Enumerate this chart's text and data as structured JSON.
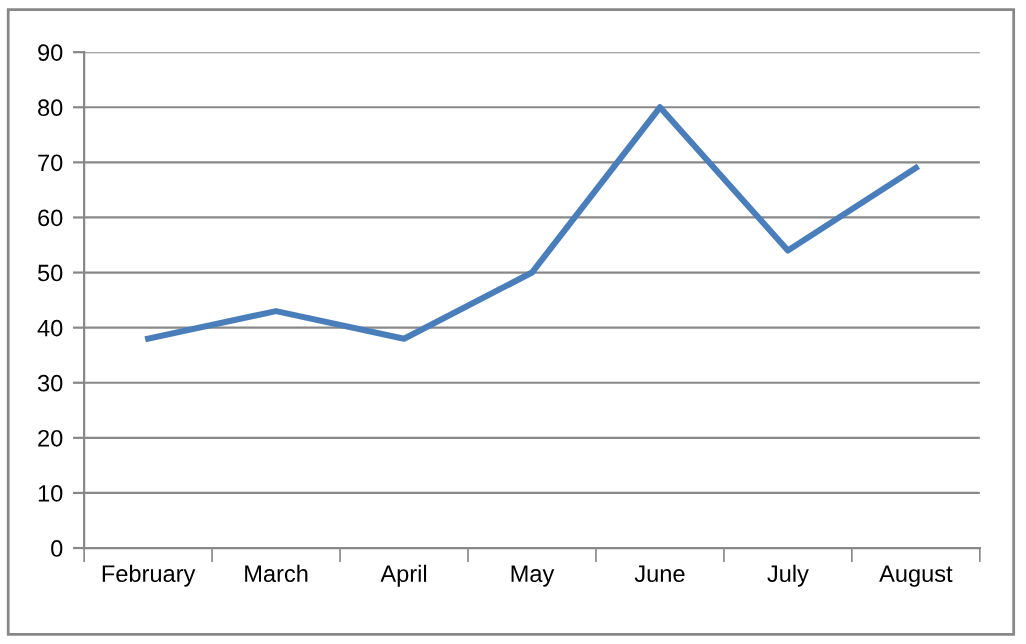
{
  "chart_data": {
    "type": "line",
    "categories": [
      "February",
      "March",
      "April",
      "May",
      "June",
      "July",
      "August"
    ],
    "series": [
      {
        "color": "#4a7ebb",
        "values": [
          38,
          43,
          38,
          50,
          80,
          54,
          69
        ]
      }
    ],
    "ylim": [
      0,
      90
    ],
    "yticks": [
      0,
      10,
      20,
      30,
      40,
      50,
      60,
      70,
      80,
      90
    ],
    "grid": "y",
    "marker": "none",
    "line_style": "solid"
  }
}
